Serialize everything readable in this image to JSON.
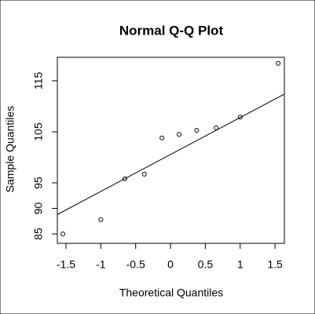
{
  "chart_data": {
    "type": "qq",
    "title": "Normal Q-Q Plot",
    "x_label": "Theoretical Quantiles",
    "y_label": "Sample Quantiles",
    "x": [
      -1.545,
      -1.0,
      -0.655,
      -0.375,
      -0.123,
      0.123,
      0.375,
      0.655,
      1.0,
      1.545
    ],
    "values": [
      85.0,
      87.8,
      95.8,
      96.7,
      103.8,
      104.5,
      105.3,
      105.8,
      107.9,
      118.4
    ],
    "reference_line": {
      "intercept": 100.56,
      "slope": 7.24
    },
    "xlim": [
      -1.624,
      1.634
    ],
    "ylim": [
      83.15,
      119.6
    ],
    "xticks": [
      -1.5,
      -1.0,
      -0.5,
      0.0,
      0.5,
      1.0,
      1.5
    ],
    "yticks": [
      85,
      90,
      95,
      105,
      115
    ],
    "color": "#000000"
  }
}
